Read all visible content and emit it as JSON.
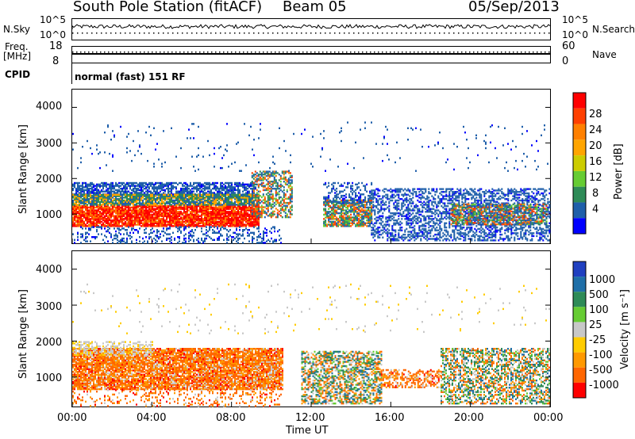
{
  "header": {
    "station": "South Pole Station (fitACF)",
    "beam": "Beam 05",
    "date": "05/Sep/2013"
  },
  "top_panel": {
    "nsky_label": "N.Sky",
    "nsky_ticks": [
      "10^5",
      "10^0"
    ],
    "nsearch_label": "N.Search",
    "nsearch_ticks": [
      "10^5",
      "10^0"
    ],
    "freq_label_1": "Freq.",
    "freq_label_2": "[MHz]",
    "freq_ticks": [
      "18",
      "8"
    ],
    "nave_label": "Nave",
    "nave_ticks": [
      "60",
      "0"
    ],
    "cpid_label": "CPID",
    "cpid_text": "normal (fast) 151 RF"
  },
  "chart_data": [
    {
      "type": "heatmap",
      "title": "",
      "xlabel": "",
      "ylabel": "Slant Range [km]",
      "y_ticks": [
        "4000",
        "3000",
        "2000",
        "1000"
      ],
      "ylim": [
        180,
        4500
      ],
      "colorbar_label": "Power [dB]",
      "colorbar_ticks": [
        "28",
        "24",
        "20",
        "16",
        "12",
        "8",
        "4"
      ],
      "colorbar_colors": [
        "#ff0000",
        "#ff4000",
        "#ff8000",
        "#ffa500",
        "#cccc00",
        "#66cc33",
        "#2e8b57",
        "#1f5faa",
        "#0000ff"
      ],
      "cells_description_blocks": [
        {
          "x0": 0.0,
          "x1": 10.4,
          "y0": 600,
          "y1": 1500,
          "level": 8
        },
        {
          "x0": 0.0,
          "x1": 9.0,
          "y0": 1500,
          "y1": 1900,
          "level": 1
        },
        {
          "x0": 13.0,
          "x1": 15.0,
          "y0": 700,
          "y1": 1400,
          "level": 4
        },
        {
          "x0": 15.0,
          "x1": 24.0,
          "y0": 500,
          "y1": 1800,
          "level": 2
        },
        {
          "x0": 19.5,
          "x1": 23.5,
          "y0": 700,
          "y1": 1300,
          "level": 5
        }
      ]
    },
    {
      "type": "heatmap",
      "title": "",
      "xlabel": "Time UT",
      "ylabel": "Slant Range [km]",
      "y_ticks": [
        "4000",
        "3000",
        "2000",
        "1000"
      ],
      "ylim": [
        180,
        4500
      ],
      "x_ticks": [
        "00:00",
        "04:00",
        "08:00",
        "12:00",
        "16:00",
        "20:00",
        "00:00"
      ],
      "colorbar_label": "Velocity [m s⁻¹]",
      "colorbar_ticks": [
        "1000",
        "500",
        "100",
        "25",
        "-25",
        "-100",
        "-500",
        "-1000"
      ],
      "colorbar_colors": [
        "#2040c0",
        "#1f6fa8",
        "#2e8b57",
        "#66cc33",
        "#c8c8c8",
        "#ffcc00",
        "#ff9900",
        "#ff6600",
        "#ff0000"
      ]
    }
  ]
}
